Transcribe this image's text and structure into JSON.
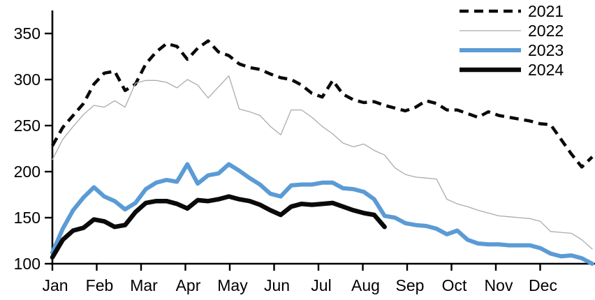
{
  "chart_data": {
    "type": "line",
    "title": "",
    "xlabel": "",
    "ylabel": "",
    "x_unit": "week-of-year",
    "x_tick_labels": [
      "Jan",
      "Feb",
      "Mar",
      "Apr",
      "May",
      "Jun",
      "Jul",
      "Aug",
      "Sep",
      "Oct",
      "Nov",
      "Dec"
    ],
    "y_ticks": [
      100,
      150,
      200,
      250,
      300,
      350
    ],
    "ylim": [
      100,
      380
    ],
    "xlim_weeks": [
      0,
      52
    ],
    "grid": false,
    "legend_position": "top-right",
    "axis_color": "#000000",
    "series": [
      {
        "name": "2021",
        "color": "#0a0a0a",
        "style": "dashed",
        "width": 4.5,
        "values": [
          228,
          248,
          261,
          274,
          295,
          307,
          309,
          288,
          295,
          317,
          330,
          339,
          336,
          322,
          334,
          342,
          330,
          326,
          317,
          313,
          311,
          306,
          302,
          300,
          294,
          285,
          281,
          299,
          284,
          278,
          275,
          276,
          272,
          269,
          266,
          270,
          277,
          274,
          267,
          267,
          263,
          259,
          265,
          261,
          259,
          257,
          255,
          252,
          251,
          235,
          219,
          205,
          216
        ]
      },
      {
        "name": "2022",
        "color": "#ababab",
        "style": "solid",
        "width": 1.3,
        "values": [
          213,
          235,
          249,
          262,
          272,
          270,
          277,
          270,
          296,
          299,
          299,
          297,
          291,
          300,
          294,
          280,
          292,
          304,
          268,
          265,
          261,
          249,
          240,
          267,
          267,
          259,
          249,
          241,
          231,
          227,
          230,
          223,
          218,
          204,
          197,
          194,
          193,
          192,
          170,
          165,
          162,
          158,
          155,
          152,
          151,
          150,
          149,
          146,
          135,
          134,
          133,
          126,
          116
        ]
      },
      {
        "name": "2023",
        "color": "#5b9bd5",
        "style": "solid",
        "width": 6,
        "values": [
          112,
          138,
          158,
          172,
          183,
          173,
          168,
          159,
          166,
          181,
          188,
          191,
          189,
          208,
          187,
          196,
          198,
          208,
          201,
          193,
          186,
          176,
          173,
          185,
          186,
          186,
          188,
          188,
          182,
          181,
          178,
          170,
          152,
          150,
          144,
          142,
          141,
          138,
          132,
          136,
          126,
          122,
          121,
          121,
          120,
          120,
          120,
          117,
          111,
          108,
          109,
          106,
          100
        ]
      },
      {
        "name": "2024",
        "color": "#0a0a0a",
        "style": "solid",
        "width": 6.5,
        "values": [
          107,
          126,
          136,
          139,
          148,
          146,
          140,
          142,
          156,
          166,
          168,
          168,
          165,
          160,
          169,
          168,
          170,
          173,
          170,
          168,
          164,
          158,
          153,
          162,
          165,
          164,
          165,
          166,
          162,
          158,
          155,
          153,
          140
        ]
      }
    ]
  }
}
